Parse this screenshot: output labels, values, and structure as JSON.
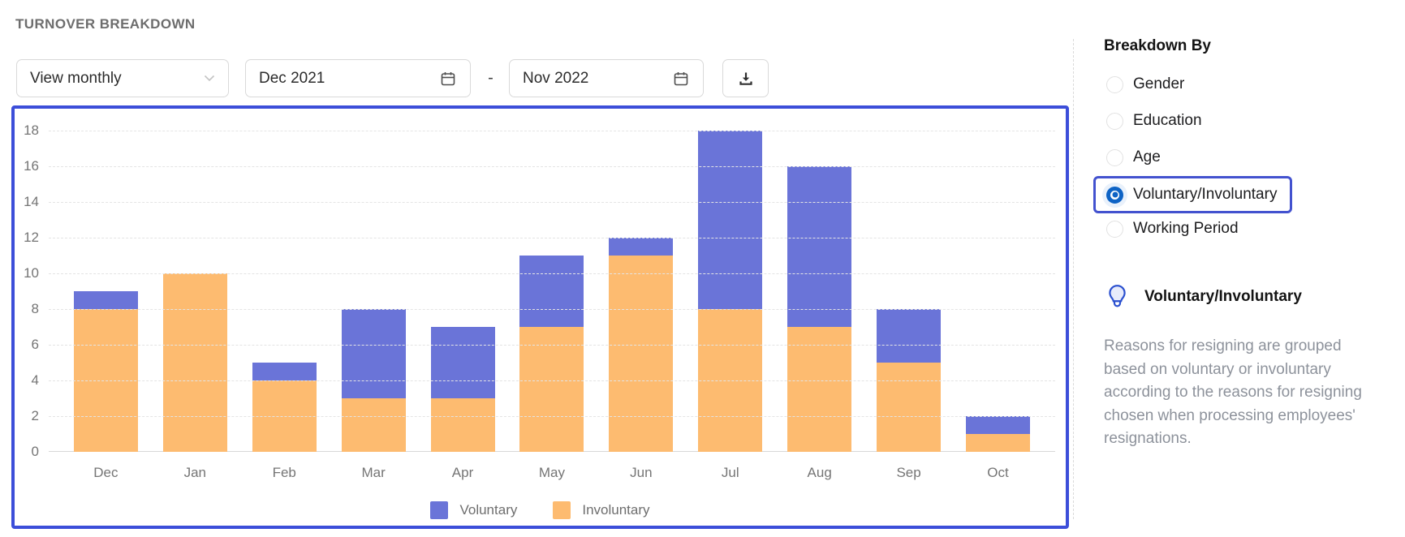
{
  "page": {
    "title": "TURNOVER BREAKDOWN"
  },
  "toolbar": {
    "view_select": {
      "value": "View monthly",
      "icon": "chevron-down-icon"
    },
    "date_from": {
      "value": "Dec 2021",
      "icon": "calendar-icon"
    },
    "date_separator": "-",
    "date_to": {
      "value": "Nov 2022",
      "icon": "calendar-icon"
    },
    "download": {
      "icon": "download-icon"
    }
  },
  "chart_data": {
    "type": "bar",
    "stacked": true,
    "categories": [
      "Dec",
      "Jan",
      "Feb",
      "Mar",
      "Apr",
      "May",
      "Jun",
      "Jul",
      "Aug",
      "Sep",
      "Oct"
    ],
    "series": [
      {
        "name": "Voluntary",
        "color": "#6a74d8",
        "values": [
          1,
          0,
          1,
          5,
          4,
          4,
          1,
          10,
          9,
          3,
          1
        ]
      },
      {
        "name": "Involuntary",
        "color": "#fdbb70",
        "values": [
          8,
          10,
          4,
          3,
          3,
          7,
          11,
          8,
          7,
          5,
          1
        ]
      }
    ],
    "totals": [
      9,
      10,
      5,
      8,
      7,
      11,
      12,
      18,
      16,
      8,
      2
    ],
    "title": "",
    "xlabel": "",
    "ylabel": "",
    "ylim": [
      0,
      18
    ],
    "ytick_step": 2,
    "yticks": [
      0,
      2,
      4,
      6,
      8,
      10,
      12,
      14,
      16,
      18
    ],
    "grid": "dashed-horizontal",
    "legend_position": "bottom"
  },
  "sidebar": {
    "heading": "Breakdown By",
    "options": [
      {
        "label": "Gender",
        "selected": false
      },
      {
        "label": "Education",
        "selected": false
      },
      {
        "label": "Age",
        "selected": false
      },
      {
        "label": "Voluntary/Involuntary",
        "selected": true
      },
      {
        "label": "Working Period",
        "selected": false
      }
    ],
    "info": {
      "icon": "lightbulb-icon",
      "title": "Voluntary/Involuntary",
      "description": "Reasons for resigning are grouped based on voluntary or involuntary according to the reasons for resigning chosen when processing employees' resignations."
    }
  },
  "colors": {
    "chart_border": "#3c4ed9",
    "selected_option_border": "#4352cf",
    "radio_selected": "#0e63c5",
    "voluntary": "#6a74d8",
    "involuntary": "#fdbb70"
  }
}
